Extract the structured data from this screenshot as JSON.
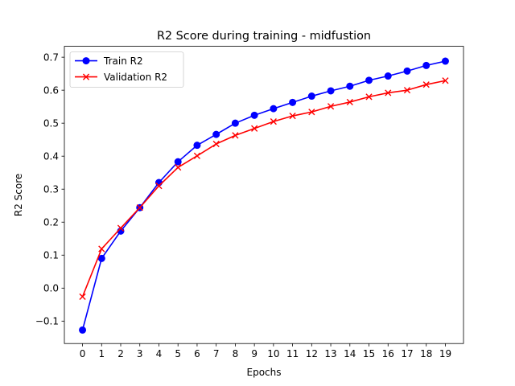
{
  "chart_data": {
    "type": "line",
    "title": "R2 Score during training - midfustion",
    "xlabel": "Epochs",
    "ylabel": "R2 Score",
    "x": [
      0,
      1,
      2,
      3,
      4,
      5,
      6,
      7,
      8,
      9,
      10,
      11,
      12,
      13,
      14,
      15,
      16,
      17,
      18,
      19
    ],
    "xlim": [
      -0.95,
      19.95
    ],
    "ylim": [
      -0.168,
      0.733
    ],
    "yticks": [
      -0.1,
      0.0,
      0.1,
      0.2,
      0.3,
      0.4,
      0.5,
      0.6,
      0.7
    ],
    "ytick_labels": [
      "−0.1",
      "0.0",
      "0.1",
      "0.2",
      "0.3",
      "0.4",
      "0.5",
      "0.6",
      "0.7"
    ],
    "grid": false,
    "legend_position": "top-left",
    "series": [
      {
        "name": "Train R2",
        "color": "#0000ff",
        "marker": "circle",
        "values": [
          -0.127,
          0.09,
          0.173,
          0.244,
          0.32,
          0.383,
          0.433,
          0.466,
          0.5,
          0.524,
          0.544,
          0.563,
          0.582,
          0.598,
          0.612,
          0.63,
          0.643,
          0.658,
          0.675,
          0.688
        ]
      },
      {
        "name": "Validation R2",
        "color": "#ff0000",
        "marker": "x",
        "values": [
          -0.026,
          0.119,
          0.182,
          0.244,
          0.31,
          0.366,
          0.401,
          0.437,
          0.463,
          0.484,
          0.505,
          0.522,
          0.534,
          0.551,
          0.564,
          0.58,
          0.592,
          0.6,
          0.617,
          0.629
        ]
      }
    ]
  }
}
